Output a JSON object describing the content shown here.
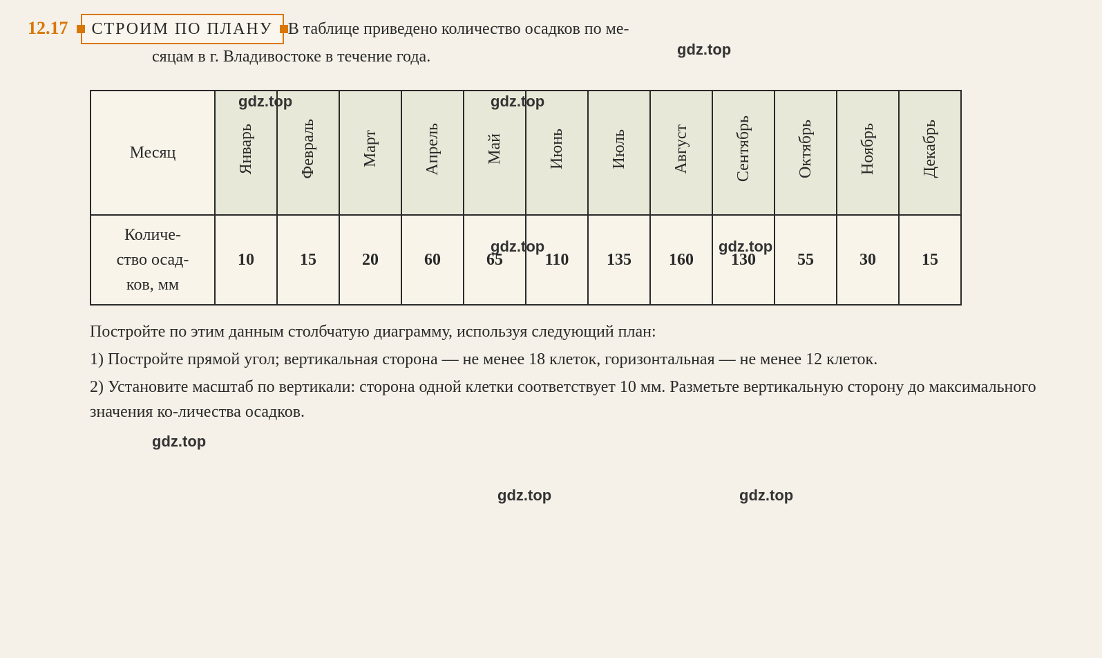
{
  "exercise": {
    "number": "12.17",
    "badge_label": "Строим по плану",
    "intro_line1": "В таблице приведено количество осадков по ме-",
    "intro_line2": "сяцам в г. Владивостоке в течение года."
  },
  "watermark": "gdz.top",
  "table": {
    "row1_header": "Месяц",
    "row2_header": "Количе-\nство осад-\nков, мм",
    "months": [
      "Январь",
      "Февраль",
      "Март",
      "Апрель",
      "Май",
      "Июнь",
      "Июль",
      "Август",
      "Сентябрь",
      "Октябрь",
      "Ноябрь",
      "Декабрь"
    ],
    "values": [
      10,
      15,
      20,
      60,
      65,
      110,
      135,
      160,
      130,
      55,
      30,
      15
    ],
    "header_bg_color": "#e8e8d8",
    "border_color": "#2a2a2a",
    "bg_color": "#f8f4ea"
  },
  "instructions": {
    "intro": "Постройте по этим данным столбчатую диаграмму, используя следующий план:",
    "step1": "1) Постройте прямой угол; вертикальная сторона — не менее 18 клеток, горизонтальная — не менее 12 клеток.",
    "step2": "2) Установите масштаб по вертикали: сторона одной клетки соответствует 10 мм. Разметьте вертикальную сторону до максимального значения ко-личества осадков."
  },
  "colors": {
    "page_bg": "#f5f0e8",
    "accent": "#d97706",
    "text": "#2a2a2a"
  }
}
